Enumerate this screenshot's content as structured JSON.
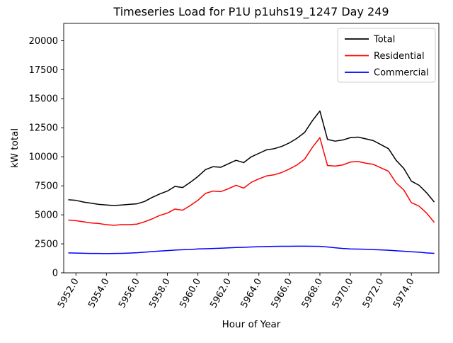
{
  "chart_data": {
    "type": "line",
    "title": "Timeseries Load for P1U p1uhs19_1247  Day 249",
    "xlabel": "Hour of Year",
    "ylabel": "kW total",
    "xlim": [
      5951.2,
      5975.8
    ],
    "ylim": [
      0,
      21500
    ],
    "grid": false,
    "legend_position": "upper right",
    "legend_border_color": "#cccccc",
    "x_tick_labels": [
      "5952.0",
      "5954.0",
      "5956.0",
      "5958.0",
      "5960.0",
      "5962.0",
      "5964.0",
      "5966.0",
      "5968.0",
      "5970.0",
      "5972.0",
      "5974.0"
    ],
    "y_tick_labels": [
      0,
      2500,
      5000,
      7500,
      10000,
      12500,
      15000,
      17500,
      20000
    ],
    "x": [
      5951.5,
      5952.0,
      5952.5,
      5953.0,
      5953.5,
      5954.0,
      5954.5,
      5955.0,
      5955.5,
      5956.0,
      5956.5,
      5957.0,
      5957.5,
      5958.0,
      5958.5,
      5959.0,
      5959.5,
      5960.0,
      5960.5,
      5961.0,
      5961.5,
      5962.0,
      5962.5,
      5963.0,
      5963.5,
      5964.0,
      5964.5,
      5965.0,
      5965.5,
      5966.0,
      5966.5,
      5967.0,
      5967.5,
      5968.0,
      5968.5,
      5969.0,
      5969.5,
      5970.0,
      5970.5,
      5971.0,
      5971.5,
      5972.0,
      5972.5,
      5973.0,
      5973.5,
      5974.0,
      5974.5,
      5975.0,
      5975.5
    ],
    "series": [
      {
        "name": "Total",
        "color": "#000000",
        "values": [
          6300,
          6250,
          6100,
          6000,
          5900,
          5850,
          5800,
          5850,
          5900,
          5950,
          6150,
          6500,
          6800,
          7050,
          7450,
          7350,
          7800,
          8300,
          8900,
          9150,
          9100,
          9400,
          9700,
          9500,
          10000,
          10300,
          10600,
          10700,
          10900,
          11200,
          11600,
          12100,
          13100,
          13950,
          11500,
          11350,
          11450,
          11650,
          11700,
          11550,
          11400,
          11050,
          10700,
          9700,
          9000,
          7900,
          7550,
          6900,
          6100
        ]
      },
      {
        "name": "Residential",
        "color": "#ff0000",
        "values": [
          4550,
          4500,
          4400,
          4300,
          4250,
          4150,
          4100,
          4150,
          4150,
          4200,
          4400,
          4650,
          4950,
          5150,
          5500,
          5400,
          5800,
          6250,
          6850,
          7050,
          7000,
          7250,
          7550,
          7300,
          7800,
          8100,
          8350,
          8450,
          8650,
          8950,
          9300,
          9800,
          10800,
          11650,
          9250,
          9200,
          9300,
          9550,
          9600,
          9450,
          9350,
          9050,
          8750,
          7750,
          7150,
          6050,
          5750,
          5150,
          4350
        ]
      },
      {
        "name": "Commercial",
        "color": "#0000ff",
        "values": [
          1720,
          1700,
          1690,
          1670,
          1670,
          1660,
          1670,
          1680,
          1700,
          1730,
          1780,
          1830,
          1880,
          1920,
          1960,
          1990,
          2010,
          2060,
          2080,
          2100,
          2120,
          2150,
          2180,
          2200,
          2230,
          2250,
          2270,
          2280,
          2290,
          2290,
          2300,
          2300,
          2290,
          2280,
          2230,
          2160,
          2100,
          2060,
          2050,
          2030,
          2000,
          1980,
          1950,
          1900,
          1860,
          1820,
          1780,
          1720,
          1680
        ]
      }
    ]
  }
}
